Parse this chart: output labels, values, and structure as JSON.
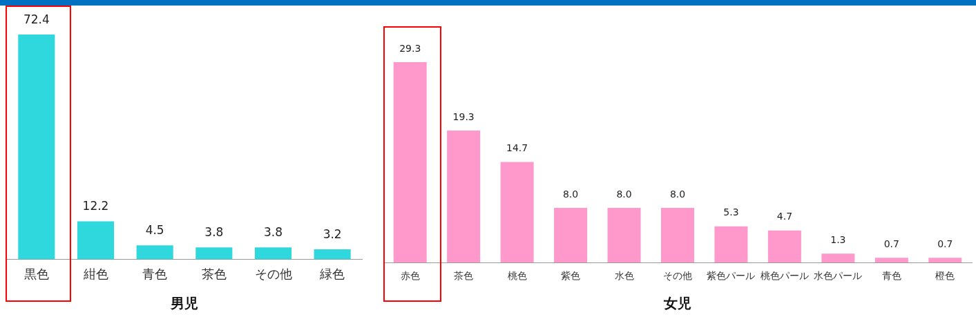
{
  "chart_data": [
    {
      "type": "bar",
      "xlabel": "男児",
      "categories": [
        "黒色",
        "紺色",
        "青色",
        "茶色",
        "その他",
        "緑色"
      ],
      "values": [
        72.4,
        12.2,
        4.5,
        3.8,
        3.8,
        3.2
      ],
      "color": "#2fd8dc",
      "data_labels": true,
      "grid": false
    },
    {
      "type": "bar",
      "xlabel": "女児",
      "categories": [
        "赤色",
        "茶色",
        "桃色",
        "紫色",
        "水色",
        "その他",
        "紫色パール",
        "桃色パール",
        "水色パール",
        "青色",
        "橙色"
      ],
      "values": [
        29.3,
        19.3,
        14.7,
        8.0,
        8.0,
        8.0,
        5.3,
        4.7,
        1.3,
        0.7,
        0.7
      ],
      "value_labels": [
        "29.3",
        "19.3",
        "14.7",
        "8.0",
        "8.0",
        "8.0",
        "5.3",
        "4.7",
        "1.3",
        "0.7",
        "0.7"
      ],
      "color": "#ff99cc",
      "grid": false
    }
  ]
}
